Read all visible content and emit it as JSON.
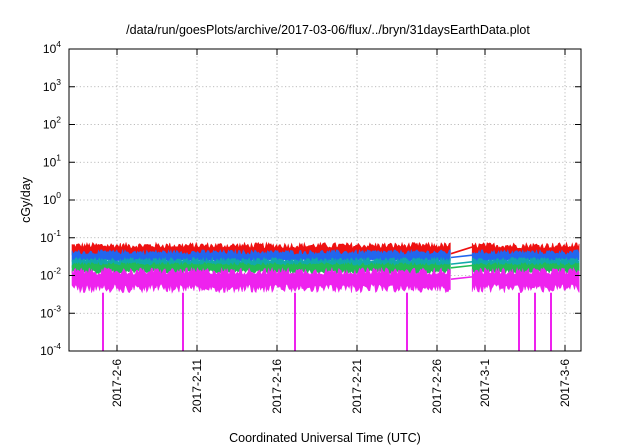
{
  "chart_data": {
    "type": "line",
    "title": "/data/run/goesPlots/archive/2017-03-06/flux/../bryn/31daysEarthData.plot",
    "xlabel": "Coordinated Universal Time (UTC)",
    "ylabel": "cGy/day",
    "yscale": "log",
    "ylim": [
      0.0001,
      10000
    ],
    "ytick_labels": [
      {
        "base": "10",
        "exp": "-4",
        "value": 0.0001
      },
      {
        "base": "10",
        "exp": "-3",
        "value": 0.001
      },
      {
        "base": "10",
        "exp": "-2",
        "value": 0.01
      },
      {
        "base": "10",
        "exp": "-1",
        "value": 0.1
      },
      {
        "base": "10",
        "exp": "0",
        "value": 1
      },
      {
        "base": "10",
        "exp": "1",
        "value": 10
      },
      {
        "base": "10",
        "exp": "2",
        "value": 100
      },
      {
        "base": "10",
        "exp": "3",
        "value": 1000
      },
      {
        "base": "10",
        "exp": "4",
        "value": 10000
      }
    ],
    "xlim": [
      "2017-02-03",
      "2017-03-07"
    ],
    "xtick_labels": [
      "2017-2-6",
      "2017-2-11",
      "2017-2-16",
      "2017-2-21",
      "2017-2-26",
      "2017-3-1",
      "2017-3-6"
    ],
    "xtick_dates": [
      "2017-02-06",
      "2017-02-11",
      "2017-02-16",
      "2017-02-21",
      "2017-02-26",
      "2017-03-01",
      "2017-03-06"
    ],
    "grid": true,
    "data_gap": [
      "2017-02-27",
      "2017-02-28"
    ],
    "series": [
      {
        "color": "#ee1111",
        "typical": 0.042,
        "upper": 0.075,
        "lower": 0.03
      },
      {
        "color": "#2266ee",
        "typical": 0.03,
        "upper": 0.048,
        "lower": 0.022
      },
      {
        "color": "#11aaaa",
        "typical": 0.02,
        "upper": 0.03,
        "lower": 0.014
      },
      {
        "color": "#22bb55",
        "typical": 0.016,
        "upper": 0.022,
        "lower": 0.011
      },
      {
        "color": "#ee22ee",
        "typical": 0.008,
        "upper": 0.016,
        "lower": 0.0035
      }
    ],
    "dips": [
      {
        "date": "2017-02-05",
        "value": 0.0001
      },
      {
        "date": "2017-02-10",
        "value": 0.0001
      },
      {
        "date": "2017-02-17",
        "value": 0.0001
      },
      {
        "date": "2017-02-24",
        "value": 0.0001
      },
      {
        "date": "2017-03-03",
        "value": 0.0001
      },
      {
        "date": "2017-03-04",
        "value": 0.0001
      },
      {
        "date": "2017-03-05",
        "value": 0.0001
      }
    ]
  }
}
